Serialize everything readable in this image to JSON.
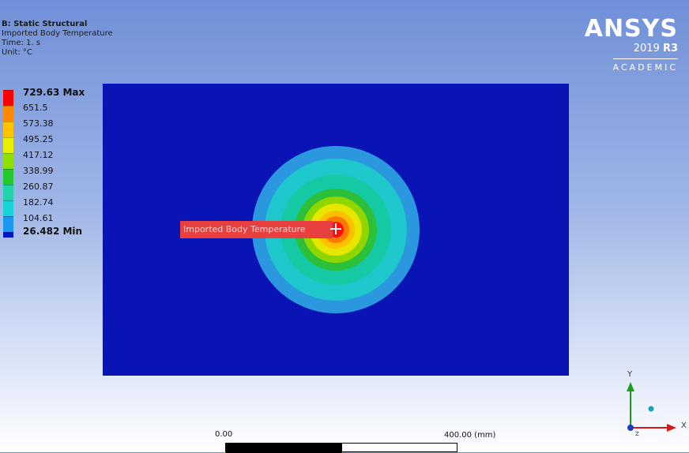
{
  "header": {
    "title": "B: Static Structural",
    "result_name": "Imported Body Temperature",
    "time": "Time: 1. s",
    "unit": "Unit: °C"
  },
  "logo": {
    "brand": "ANSYS",
    "version_year": "2019",
    "version_release": "R3",
    "edition": "ACADEMIC"
  },
  "legend": {
    "items": [
      {
        "label": "729.63 Max",
        "color": "#ff0000"
      },
      {
        "label": "651.5",
        "color": "#ff8a00"
      },
      {
        "label": "573.38",
        "color": "#ffc400"
      },
      {
        "label": "495.25",
        "color": "#e8f000"
      },
      {
        "label": "417.12",
        "color": "#8fe000"
      },
      {
        "label": "338.99",
        "color": "#23c82a"
      },
      {
        "label": "260.87",
        "color": "#1fd4a8"
      },
      {
        "label": "182.74",
        "color": "#14d4d8"
      },
      {
        "label": "104.61",
        "color": "#1898f0"
      }
    ],
    "last": {
      "label": "26.482 Min",
      "color": "#0018c8"
    }
  },
  "contours": [
    {
      "band": "104.61",
      "color": "#2b97df"
    },
    {
      "band": "182.74",
      "color": "#1ec7cc"
    },
    {
      "band": "260.87",
      "color": "#14c9a4"
    },
    {
      "band": "338.99",
      "color": "#2cbf3a"
    },
    {
      "band": "417.12",
      "color": "#8fd600"
    },
    {
      "band": "495.25",
      "color": "#e6e600"
    },
    {
      "band": "573.38",
      "color": "#ffc000"
    },
    {
      "band": "651.5",
      "color": "#ff7a00"
    },
    {
      "band": "729.63",
      "color": "#ff0d0d"
    }
  ],
  "probe": {
    "label": "Imported Body Temperature"
  },
  "scale": {
    "left_label": "0.00",
    "right_label": "400.00 (mm)"
  },
  "triad": {
    "y_label": "Y",
    "x_label": "X",
    "z_label": "Z"
  }
}
